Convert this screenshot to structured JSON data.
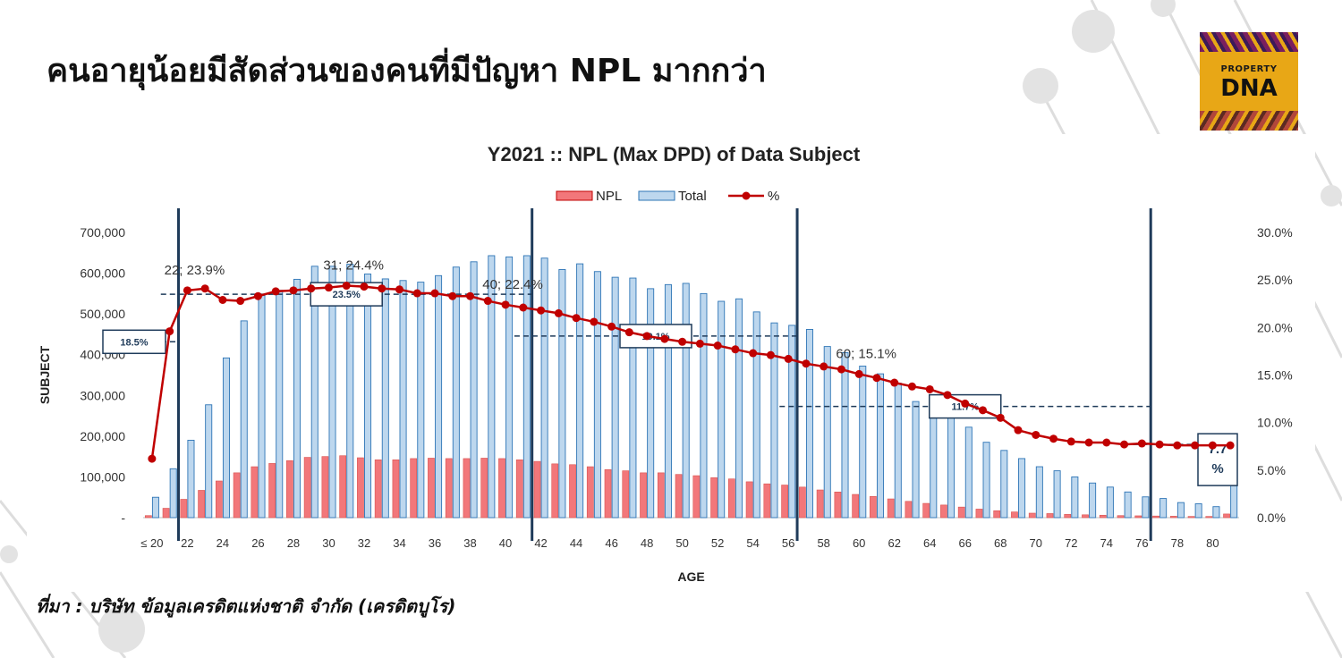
{
  "slide": {
    "title": "คนอายุน้อยมีสัดส่วนของคนที่มีปัญหา NPL มากกว่า",
    "source": "ที่มา : บริษัท ข้อมูลเครดิตแห่งชาติ จำกัด (เครดิตบูโร)",
    "logo": {
      "line1": "PROPERTY",
      "line2": "DNA"
    }
  },
  "chart_data": {
    "type": "bar",
    "title": "Y2021 :: NPL (Max DPD) of Data Subject",
    "xlabel": "AGE",
    "ylabel": "SUBJECT",
    "ylim": [
      0,
      700000
    ],
    "y2lim": [
      0,
      30
    ],
    "y_ticks": [
      "-",
      "100,000",
      "200,000",
      "300,000",
      "400,000",
      "500,000",
      "600,000",
      "700,000"
    ],
    "y2_ticks": [
      "0.0%",
      "5.0%",
      "10.0%",
      "15.0%",
      "20.0%",
      "25.0%",
      "30.0%"
    ],
    "categories": [
      "≤ 20",
      "21",
      "22",
      "23",
      "24",
      "25",
      "26",
      "27",
      "28",
      "29",
      "30",
      "31",
      "32",
      "33",
      "34",
      "35",
      "36",
      "37",
      "38",
      "39",
      "40",
      "41",
      "42",
      "43",
      "44",
      "45",
      "46",
      "47",
      "48",
      "49",
      "50",
      "51",
      "52",
      "53",
      "54",
      "55",
      "56",
      "57",
      "58",
      "59",
      "60",
      "61",
      "62",
      "63",
      "64",
      "65",
      "66",
      "67",
      "68",
      "69",
      "70",
      "71",
      "72",
      "73",
      "74",
      "75",
      "76",
      "77",
      "78",
      "79",
      "80",
      "81"
    ],
    "x_tick_labels": [
      "≤ 20",
      "",
      "22",
      "",
      "24",
      "",
      "26",
      "",
      "28",
      "",
      "30",
      "",
      "32",
      "",
      "34",
      "",
      "36",
      "",
      "38",
      "",
      "40",
      "",
      "42",
      "",
      "44",
      "",
      "46",
      "",
      "48",
      "",
      "50",
      "",
      "52",
      "",
      "54",
      "",
      "56",
      "",
      "58",
      "",
      "60",
      "",
      "62",
      "",
      "64",
      "",
      "66",
      "",
      "68",
      "",
      "70",
      "",
      "72",
      "",
      "74",
      "",
      "76",
      "",
      "78",
      "",
      "80",
      ""
    ],
    "legend": [
      "NPL",
      "Total",
      "%"
    ],
    "legend_position": "top",
    "grid": false,
    "series": [
      {
        "name": "NPL",
        "axis": "left",
        "color": "#f2777a",
        "values": [
          5000,
          23000,
          45000,
          67000,
          90000,
          110000,
          125000,
          133000,
          140000,
          148000,
          150000,
          152000,
          147000,
          142000,
          142000,
          145000,
          146000,
          145000,
          145000,
          146000,
          145000,
          142000,
          138000,
          132000,
          130000,
          125000,
          118000,
          115000,
          110000,
          110000,
          106000,
          103000,
          98000,
          95000,
          88000,
          83000,
          80000,
          75000,
          68000,
          63000,
          57000,
          52000,
          46000,
          40000,
          35000,
          31000,
          26000,
          21000,
          17000,
          14000,
          11000,
          10000,
          8000,
          7000,
          6000,
          5000,
          4500,
          4000,
          3500,
          3000,
          3000,
          9000
        ]
      },
      {
        "name": "Total",
        "axis": "left",
        "color": "#bdd7ee",
        "values": [
          50000,
          120000,
          190000,
          277000,
          392000,
          483000,
          545000,
          558000,
          585000,
          617000,
          617000,
          622000,
          598000,
          586000,
          582000,
          578000,
          594000,
          615000,
          628000,
          643000,
          640000,
          643000,
          637000,
          609000,
          623000,
          604000,
          590000,
          588000,
          562000,
          572000,
          575000,
          550000,
          531000,
          537000,
          505000,
          478000,
          472000,
          462000,
          420000,
          405000,
          372000,
          353000,
          330000,
          285000,
          266000,
          248000,
          222000,
          185000,
          165000,
          145000,
          125000,
          115000,
          100000,
          85000,
          75000,
          63000,
          51000,
          47000,
          37000,
          34000,
          27000,
          200000
        ]
      },
      {
        "name": "%",
        "axis": "right",
        "color": "#c00000",
        "type": "line",
        "values": [
          6.2,
          19.6,
          23.9,
          24.1,
          22.9,
          22.8,
          23.3,
          23.8,
          23.9,
          24.1,
          24.2,
          24.4,
          24.3,
          24.1,
          24.0,
          23.6,
          23.6,
          23.3,
          23.3,
          22.8,
          22.4,
          22.1,
          21.8,
          21.5,
          21.0,
          20.6,
          20.1,
          19.5,
          19.1,
          18.8,
          18.5,
          18.3,
          18.1,
          17.7,
          17.3,
          17.1,
          16.7,
          16.2,
          15.9,
          15.6,
          15.1,
          14.7,
          14.2,
          13.8,
          13.5,
          12.9,
          12.0,
          11.3,
          10.5,
          9.2,
          8.7,
          8.3,
          8.0,
          7.9,
          7.9,
          7.7,
          7.8,
          7.7,
          7.6,
          7.6,
          7.6,
          7.6
        ]
      }
    ],
    "annotations": {
      "point_labels": [
        {
          "index": 2,
          "text": "22; 23.9%"
        },
        {
          "index": 11,
          "text": "31; 24.4%"
        },
        {
          "index": 20,
          "text": "40; 22.4%"
        },
        {
          "index": 40,
          "text": "60; 15.1%"
        }
      ],
      "group_boxes": [
        {
          "text": "18.5%",
          "value": 18.5,
          "from": 0,
          "to": 1
        },
        {
          "text": "23.5%",
          "value": 23.5,
          "from": 1,
          "to": 21
        },
        {
          "text": "19.1%",
          "value": 19.1,
          "from": 21,
          "to": 36
        },
        {
          "text": "11.7%",
          "value": 11.7,
          "from": 36,
          "to": 56
        },
        {
          "text": "7.7\n%",
          "value": 7.7,
          "from": 56,
          "to": 61
        }
      ],
      "dividers_after_index": [
        1,
        21,
        36,
        56
      ]
    }
  }
}
